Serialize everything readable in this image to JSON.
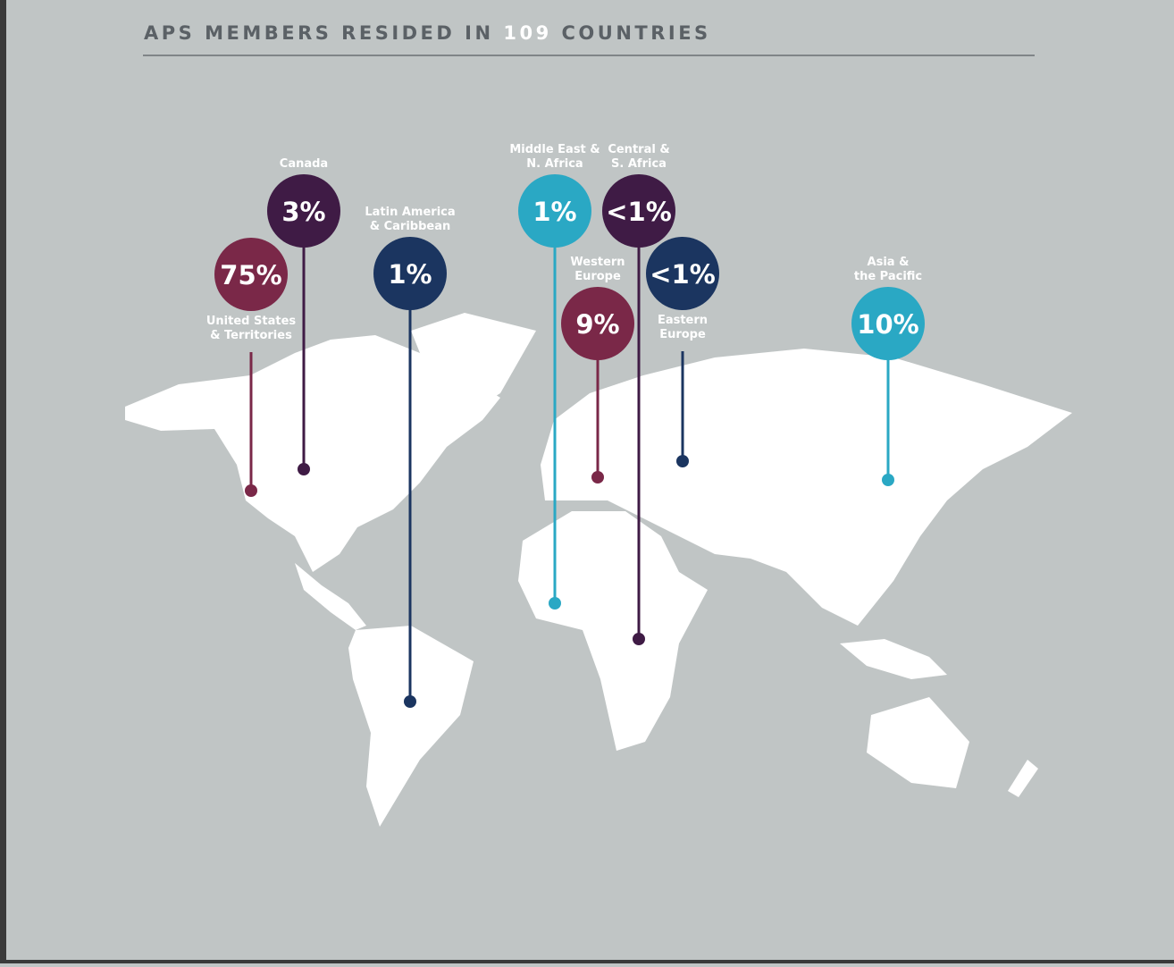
{
  "header": {
    "title_before": "APS MEMBERS RESIDED IN",
    "title_number": "109",
    "title_after": "COUNTRIES"
  },
  "pins": [
    {
      "label": [
        "United States",
        "& Territories"
      ],
      "value": "75%",
      "color": "#7a2848"
    },
    {
      "label": [
        "Canada"
      ],
      "value": "3%",
      "color": "#3f1b45"
    },
    {
      "label": [
        "Latin America",
        "& Caribbean"
      ],
      "value": "1%",
      "color": "#1b3560"
    },
    {
      "label": [
        "Middle East &",
        "N. Africa"
      ],
      "value": "1%",
      "color": "#2aa8c4"
    },
    {
      "label": [
        "Central &",
        "S. Africa"
      ],
      "value": "<1%",
      "color": "#3f1b45"
    },
    {
      "label": [
        "Eastern",
        "Europe"
      ],
      "value": "<1%",
      "color": "#1b3560"
    },
    {
      "label": [
        "Western",
        "Europe"
      ],
      "value": "9%",
      "color": "#7a2848"
    },
    {
      "label": [
        "Asia &",
        "the Pacific"
      ],
      "value": "10%",
      "color": "#2aa8c4"
    }
  ]
}
